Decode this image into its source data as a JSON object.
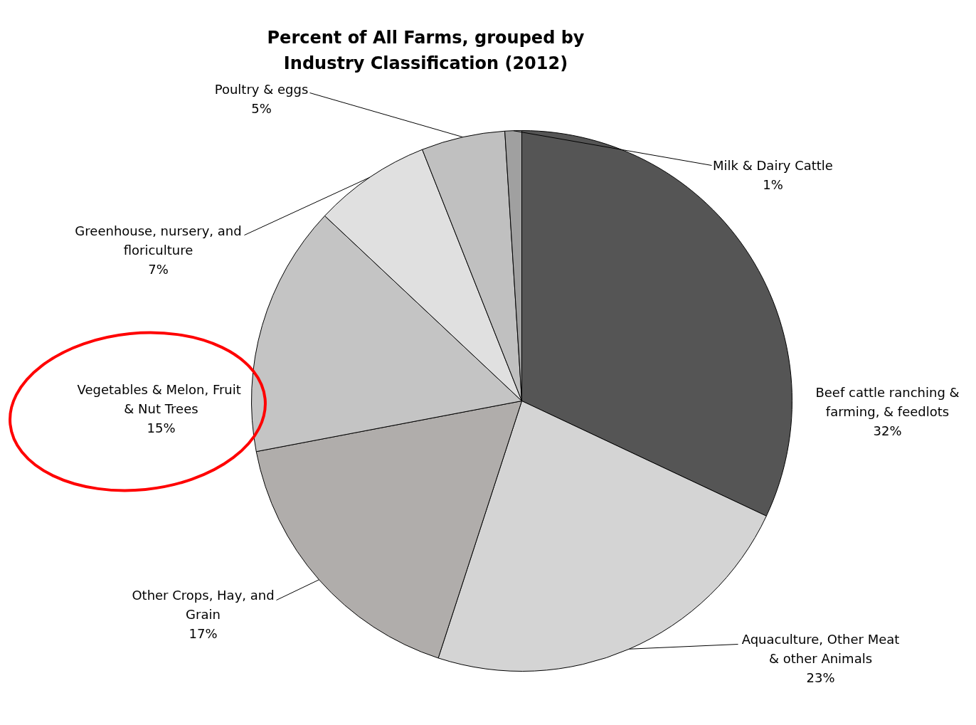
{
  "chart_data": {
    "type": "pie",
    "title": "Percent of All Farms, grouped by Industry Classification (2012)",
    "categories": [
      "Beef cattle ranching & farming, & feedlots",
      "Aquaculture, Other Meat & other Animals",
      "Other Crops, Hay, and Grain",
      "Vegetables &  Melon, Fruit & Nut Trees",
      "Greenhouse, nursery, and floriculture",
      "Poultry & eggs",
      "Milk & Dairy Cattle"
    ],
    "values": [
      32,
      23,
      17,
      15,
      7,
      5,
      1
    ],
    "colors": [
      "#555555",
      "#d4d4d4",
      "#b0adab",
      "#c4c4c4",
      "#e0e0e0",
      "#c0c0c0",
      "#a0a0a0"
    ],
    "value_labels": [
      "32%",
      "23%",
      "17%",
      "15%",
      "7%",
      "5%",
      "1%"
    ]
  }
}
